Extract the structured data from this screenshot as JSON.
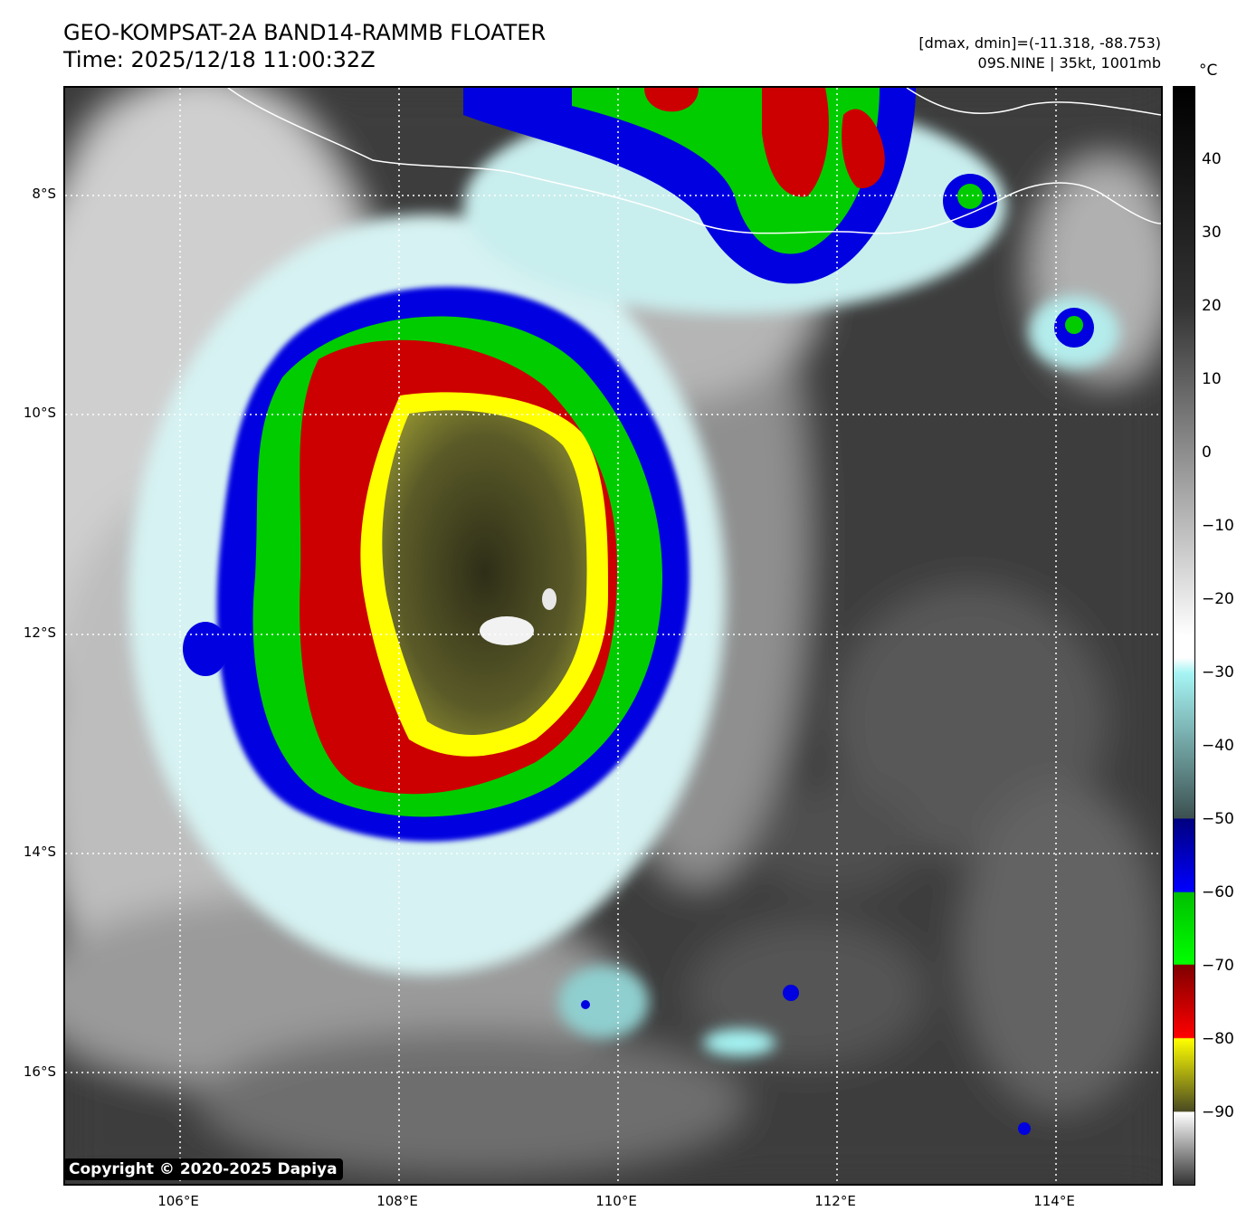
{
  "header": {
    "title_line1": "GEO-KOMPSAT-2A BAND14-RAMMB FLOATER",
    "title_line2": "Time: 2025/12/18 11:00:32Z",
    "range_text": "[dmax, dmin]=(-11.318, -88.753)",
    "storm_text": "09S.NINE | 35kt, 1001mb"
  },
  "colorbar": {
    "unit": "°C",
    "ticks": [
      "40",
      "30",
      "20",
      "10",
      "0",
      "−10",
      "−20",
      "−30",
      "−40",
      "−50",
      "−60",
      "−70",
      "−80",
      "−90"
    ],
    "range": [
      -100,
      50
    ],
    "colors": {
      "black": "#000000",
      "dark_gray": "#333333",
      "white": "#ffffff",
      "cyan": "#a6f4f4",
      "slate": "#3c5050",
      "navy": "#000080",
      "blue": "#0000ff",
      "green": "#00c000",
      "lime": "#00ff00",
      "dark_red": "#800000",
      "red": "#ff0000",
      "yellow": "#ffff00",
      "olive": "#4a4a22"
    }
  },
  "axes": {
    "x_ticks": [
      "106°E",
      "108°E",
      "110°E",
      "112°E",
      "114°E"
    ],
    "y_ticks": [
      "8°S",
      "10°S",
      "12°S",
      "14°S",
      "16°S"
    ],
    "lon_range": [
      105,
      115
    ],
    "lat_range": [
      -17,
      -7
    ]
  },
  "copyright": "Copyright © 2020-2025 Dapiya"
}
